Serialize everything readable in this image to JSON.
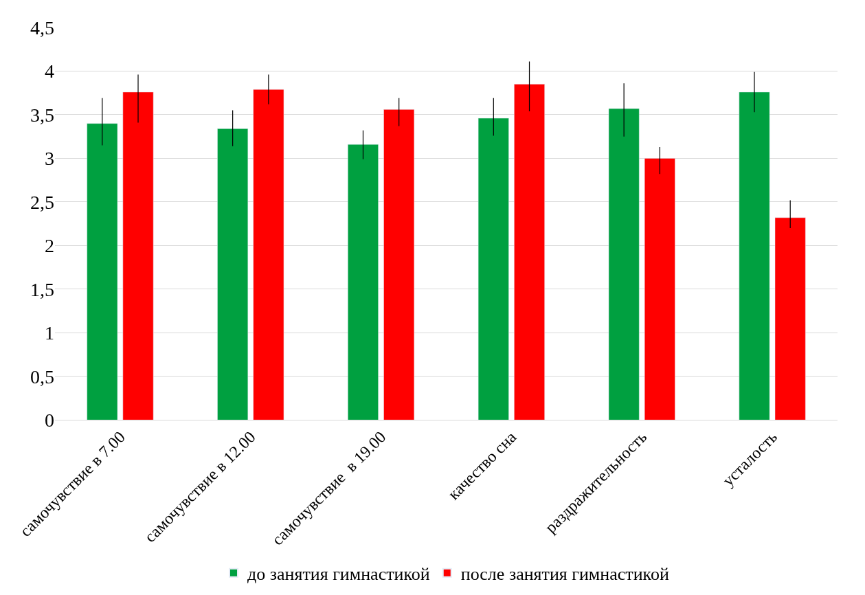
{
  "chart_data": {
    "type": "bar",
    "categories": [
      "самочувствие в 7.00",
      "самочувствие в 12.00",
      "самочувствие  в 19.00",
      "качество сна",
      "раздражительность",
      "усталость"
    ],
    "series": [
      {
        "name": "до занятия гимнастикой",
        "color": "#00a040",
        "values": [
          3.4,
          3.34,
          3.16,
          3.46,
          3.57,
          3.76
        ],
        "errors": [
          [
            3.15,
            3.69
          ],
          [
            3.14,
            3.55
          ],
          [
            2.99,
            3.32
          ],
          [
            3.26,
            3.69
          ],
          [
            3.25,
            3.86
          ],
          [
            3.53,
            3.99
          ]
        ]
      },
      {
        "name": "после занятия гимнастикой",
        "color": "#ff0000",
        "values": [
          3.76,
          3.79,
          3.56,
          3.85,
          3.0,
          2.32
        ],
        "errors": [
          [
            3.41,
            3.96
          ],
          [
            3.62,
            3.96
          ],
          [
            3.37,
            3.69
          ],
          [
            3.54,
            4.11
          ],
          [
            2.82,
            3.13
          ],
          [
            2.2,
            2.52
          ]
        ]
      }
    ],
    "ylim": [
      0,
      4.5
    ],
    "yticks": [
      0,
      {
        "value": 0.5,
        "label": "0,5"
      },
      1,
      {
        "value": 1.5,
        "label": "1,5"
      },
      2,
      {
        "value": 2.5,
        "label": "2,5"
      },
      3,
      {
        "value": 3.5,
        "label": "3,5"
      },
      4,
      {
        "value": 4.5,
        "label": "4,5"
      }
    ],
    "grid": "y",
    "legend": "bottom"
  }
}
